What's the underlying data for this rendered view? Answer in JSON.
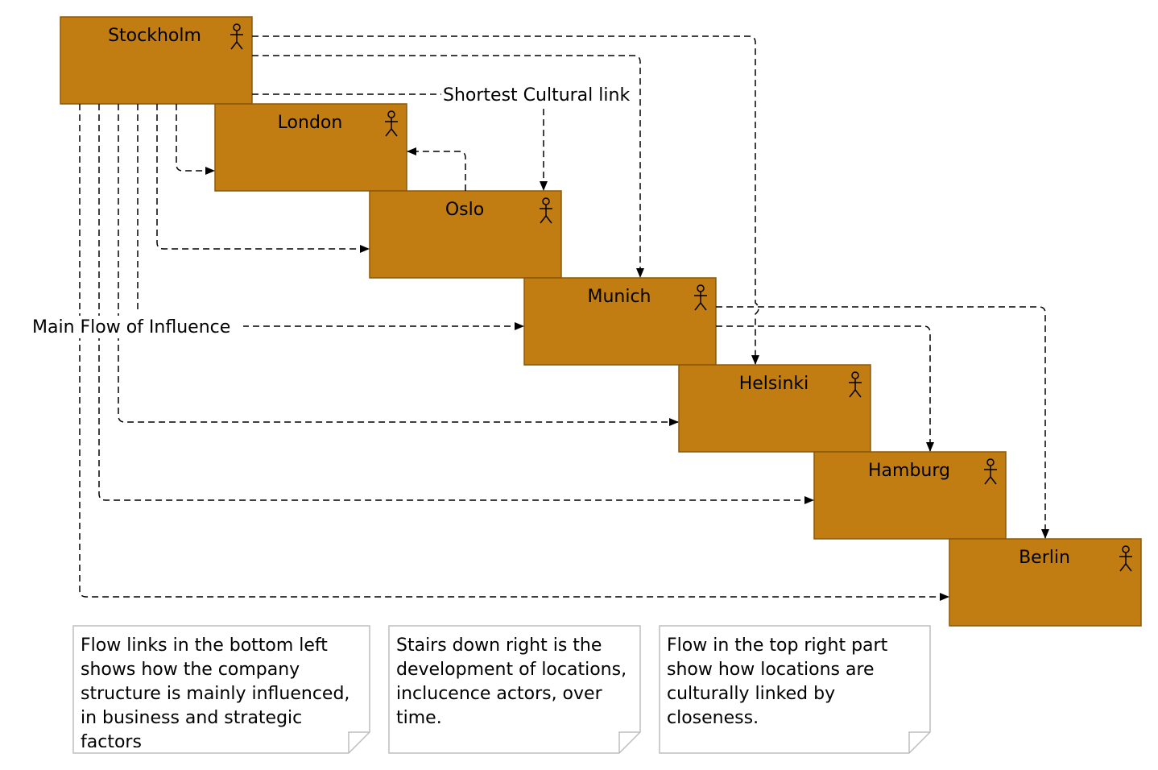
{
  "colors": {
    "node_fill": "#c17d11",
    "node_border": "#8a5a0b",
    "edge": "#000000",
    "note_border": "#bdbdbd"
  },
  "nodes": [
    {
      "id": "stockholm",
      "label": "Stockholm",
      "icon": "actor-icon"
    },
    {
      "id": "london",
      "label": "London",
      "icon": "actor-icon"
    },
    {
      "id": "oslo",
      "label": "Oslo",
      "icon": "actor-icon"
    },
    {
      "id": "munich",
      "label": "Munich",
      "icon": "actor-icon"
    },
    {
      "id": "helsinki",
      "label": "Helsinki",
      "icon": "actor-icon"
    },
    {
      "id": "hamburg",
      "label": "Hamburg",
      "icon": "actor-icon"
    },
    {
      "id": "berlin",
      "label": "Berlin",
      "icon": "actor-icon"
    }
  ],
  "edge_labels": {
    "shortest_cultural_link": "Shortest Cultural link",
    "main_flow_of_influence": "Main Flow of Influence"
  },
  "edges": [
    {
      "from": "Stockholm",
      "to": "London",
      "style": "dashed"
    },
    {
      "from": "Stockholm",
      "to": "Oslo",
      "style": "dashed"
    },
    {
      "from": "Stockholm",
      "to": "Munich",
      "style": "dashed",
      "label": "Main Flow of Influence"
    },
    {
      "from": "Stockholm",
      "to": "Helsinki",
      "style": "dashed"
    },
    {
      "from": "Stockholm",
      "to": "Hamburg",
      "style": "dashed"
    },
    {
      "from": "Stockholm",
      "to": "Berlin",
      "style": "dashed"
    },
    {
      "from": "Stockholm",
      "to": "Oslo",
      "style": "dashed",
      "label": "Shortest Cultural link"
    },
    {
      "from": "Stockholm",
      "to": "Helsinki",
      "style": "dashed"
    },
    {
      "from": "Stockholm",
      "to": "Munich",
      "style": "dashed"
    },
    {
      "from": "Oslo",
      "to": "London",
      "style": "dashed"
    },
    {
      "from": "Munich",
      "to": "Hamburg",
      "style": "dashed"
    },
    {
      "from": "Munich",
      "to": "Berlin",
      "style": "dashed"
    }
  ],
  "notes": [
    {
      "text": "Flow links in the bottom left shows how the company structure is mainly influenced, in business and strategic factors"
    },
    {
      "text": "Stairs down right is the development of locations, inclucence actors, over time."
    },
    {
      "text": "Flow in the top right part show how locations are culturally linked by closeness."
    }
  ]
}
